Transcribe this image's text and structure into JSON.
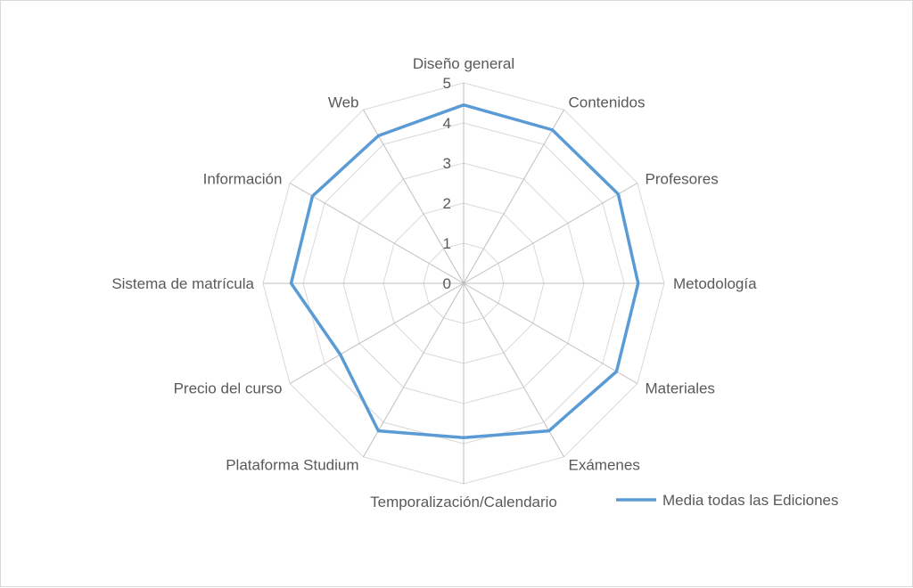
{
  "chart_data": {
    "type": "radar",
    "title": "",
    "categories": [
      "Diseño general",
      "Contenidos",
      "Profesores",
      "Metodología",
      "Materiales",
      "Exámenes",
      "Temporalización/Calendario",
      "Plataforma Studium",
      "Precio del curso",
      "Sistema de matrícula",
      "Información",
      "Web"
    ],
    "series": [
      {
        "name": "Media todas las Ediciones",
        "values": [
          4.45,
          4.42,
          4.45,
          4.35,
          4.4,
          4.25,
          3.85,
          4.25,
          3.55,
          4.3,
          4.35,
          4.25
        ],
        "color": "#5b9bd5"
      }
    ],
    "rlim": [
      0,
      5
    ],
    "ticks": [
      "0",
      "1",
      "2",
      "3",
      "4",
      "5"
    ],
    "grid": true,
    "legend_position": "bottom-right"
  }
}
